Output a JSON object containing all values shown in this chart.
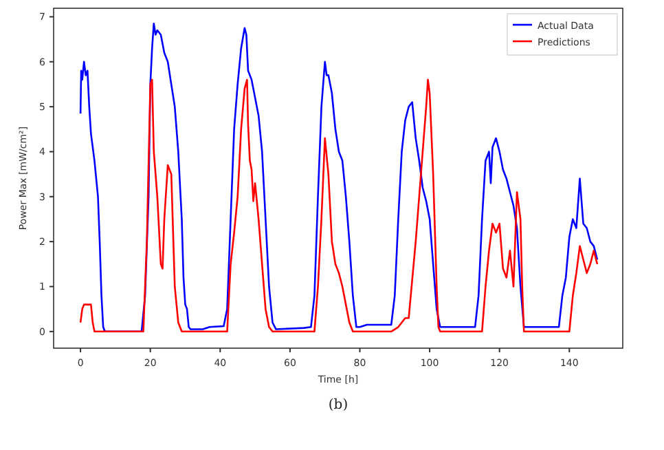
{
  "chart_data": {
    "type": "line",
    "xlabel": "Time [h]",
    "ylabel": "Power Max [mW/cm²]",
    "xlim": [
      -7.7,
      155.3
    ],
    "ylim": [
      -0.37,
      7.19
    ],
    "xticks": [
      0,
      20,
      40,
      60,
      80,
      100,
      120,
      140
    ],
    "yticks": [
      0,
      1,
      2,
      3,
      4,
      5,
      6,
      7
    ],
    "grid": false,
    "legend": "top right",
    "marker": "none",
    "line_style": "solid",
    "annotations": [
      "(b)"
    ],
    "series": [
      {
        "name": "Actual Data",
        "color": "#0000ff",
        "x": [
          0,
          0.2,
          0.5,
          1,
          1.5,
          2,
          2.5,
          3,
          4,
          5,
          5.5,
          6,
          6.5,
          7,
          17.5,
          18.5,
          19.5,
          20,
          20.5,
          21,
          21.5,
          22,
          23,
          24,
          25,
          26,
          27,
          28,
          29,
          29.5,
          30,
          30.5,
          31,
          31.5,
          35,
          37,
          41,
          42,
          43,
          44,
          45,
          46,
          47,
          47.5,
          48,
          49,
          50,
          51,
          52,
          53,
          54,
          55,
          56,
          64,
          66,
          67,
          68,
          69,
          70,
          70.5,
          71,
          72,
          73,
          74,
          75,
          76,
          77,
          78,
          79,
          80,
          82,
          89,
          90,
          91,
          92,
          93,
          94,
          95,
          96,
          97,
          98,
          99,
          100,
          101,
          102,
          103,
          113,
          114,
          115,
          116,
          117,
          117.5,
          118,
          119,
          120,
          121,
          122,
          123,
          124,
          125,
          126,
          127,
          137,
          138,
          139,
          140,
          141,
          142,
          143,
          144,
          145,
          146,
          147,
          148
        ],
        "values": [
          4.85,
          5.8,
          5.6,
          6.0,
          5.7,
          5.8,
          5.0,
          4.4,
          3.8,
          3.0,
          2.0,
          0.8,
          0.1,
          0,
          0,
          0.8,
          3.0,
          5.5,
          6.3,
          6.85,
          6.6,
          6.7,
          6.6,
          6.2,
          6.0,
          5.5,
          5.0,
          4.0,
          2.5,
          1.2,
          0.6,
          0.5,
          0.1,
          0.05,
          0.05,
          0.1,
          0.12,
          0.5,
          2.5,
          4.5,
          5.5,
          6.3,
          6.75,
          6.6,
          5.8,
          5.6,
          5.2,
          4.8,
          4.0,
          2.5,
          1.0,
          0.2,
          0.05,
          0.08,
          0.1,
          0.8,
          3.0,
          5.0,
          6.0,
          5.7,
          5.7,
          5.3,
          4.5,
          4.0,
          3.8,
          3.0,
          2.0,
          0.8,
          0.1,
          0.1,
          0.15,
          0.15,
          0.8,
          2.5,
          4.0,
          4.7,
          5.0,
          5.1,
          4.3,
          3.8,
          3.2,
          2.9,
          2.5,
          1.5,
          0.5,
          0.1,
          0.1,
          0.8,
          2.5,
          3.8,
          4.0,
          3.3,
          4.1,
          4.3,
          4.0,
          3.6,
          3.4,
          3.1,
          2.8,
          2.3,
          1.0,
          0.1,
          0.1,
          0.8,
          1.2,
          2.1,
          2.5,
          2.3,
          3.4,
          2.4,
          2.3,
          2.0,
          1.9,
          1.6
        ]
      },
      {
        "name": "Predictions",
        "color": "#ff0000",
        "x": [
          0,
          0.5,
          1,
          3,
          3.5,
          4,
          18,
          19,
          20,
          20.5,
          21,
          22,
          23,
          23.5,
          24,
          25,
          26,
          27,
          28,
          29,
          42,
          43,
          44,
          45,
          46,
          47,
          47.7,
          48,
          48.5,
          49,
          49.5,
          50,
          51,
          52,
          53,
          54,
          55,
          67,
          68,
          69,
          70,
          71,
          72,
          73,
          74,
          75,
          77,
          78,
          89,
          91,
          92,
          93,
          94,
          96,
          97,
          98,
          99,
          99.5,
          100,
          101,
          102,
          102.5,
          103,
          115,
          116,
          117,
          118,
          119,
          120,
          121,
          122,
          123,
          124,
          125,
          126,
          126.5,
          127,
          140,
          141,
          142,
          143,
          144,
          145,
          146,
          147,
          148
        ],
        "values": [
          0.2,
          0.5,
          0.6,
          0.6,
          0.2,
          0,
          0,
          2,
          5.5,
          5.6,
          4.0,
          3.0,
          1.5,
          1.4,
          2.5,
          3.7,
          3.5,
          1.0,
          0.2,
          0,
          0,
          1.5,
          2.2,
          3.0,
          4.5,
          5.4,
          5.6,
          4.6,
          3.8,
          3.6,
          2.9,
          3.3,
          2.5,
          1.5,
          0.5,
          0.1,
          0,
          0,
          1.0,
          2.5,
          4.3,
          3.5,
          2.0,
          1.5,
          1.3,
          1.0,
          0.2,
          0,
          0,
          0.1,
          0.2,
          0.3,
          0.3,
          2.0,
          3.0,
          4.0,
          5.0,
          5.6,
          5.3,
          3.5,
          1.0,
          0.1,
          0,
          0,
          1.0,
          1.8,
          2.4,
          2.2,
          2.4,
          1.4,
          1.2,
          1.8,
          1.0,
          3.1,
          2.5,
          1.0,
          0,
          0,
          0.8,
          1.3,
          1.9,
          1.6,
          1.3,
          1.5,
          1.8,
          1.5
        ]
      }
    ]
  }
}
